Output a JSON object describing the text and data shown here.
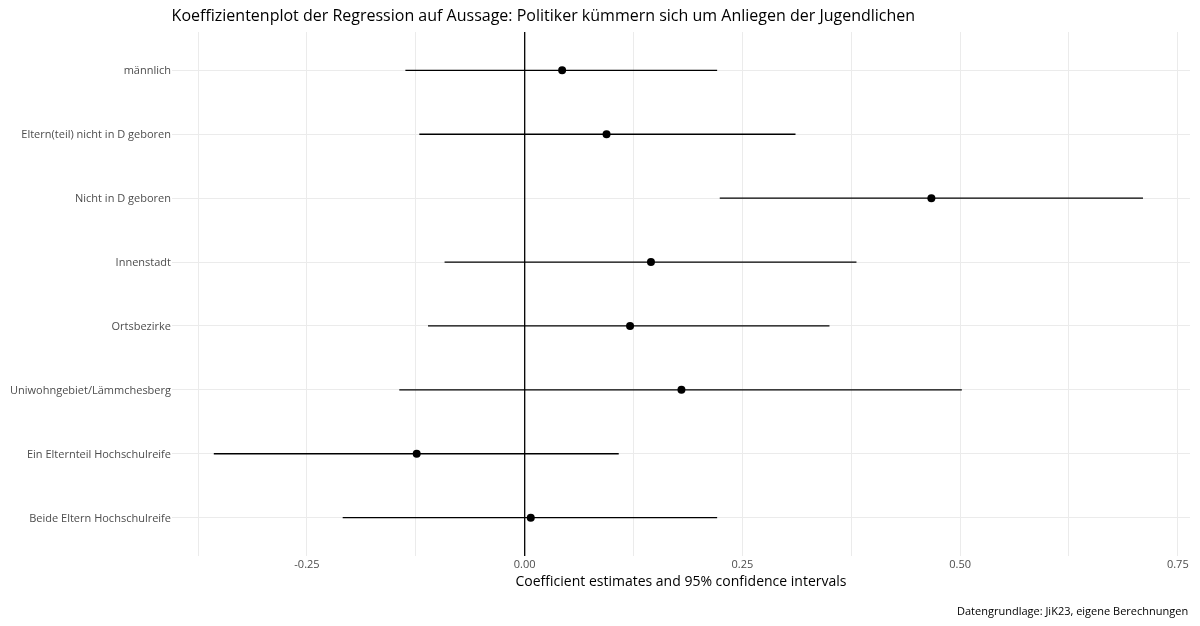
{
  "chart_data": {
    "type": "scatter",
    "orientation": "horizontal",
    "title": "Koeffizientenplot der Regression auf Aussage: Politiker kümmern sich um Anliegen der Jugendlichen",
    "xlabel": "Coefficient estimates and 95% confidence intervals",
    "categories": [
      "männlich",
      "Eltern(teil) nicht in D geboren",
      "Nicht in D geboren",
      "Innenstadt",
      "Ortsbezirke",
      "Uniwohngebiet/Lämmchesberg",
      "Ein Elternteil Hochschulreife",
      "Beide Eltern Hochschulreife"
    ],
    "values": [
      0.043,
      0.094,
      0.467,
      0.145,
      0.121,
      0.18,
      -0.124,
      0.007
    ],
    "errors": [
      [
        -0.137,
        0.221
      ],
      [
        -0.121,
        0.311
      ],
      [
        0.224,
        0.71
      ],
      [
        -0.092,
        0.381
      ],
      [
        -0.111,
        0.35
      ],
      [
        -0.144,
        0.502
      ],
      [
        -0.357,
        0.108
      ],
      [
        -0.209,
        0.221
      ]
    ],
    "color": "#000000",
    "marker": "circle",
    "xlim": [
      -0.405,
      0.764
    ],
    "xticks": [
      {
        "value": -0.375,
        "label": null
      },
      -0.25,
      {
        "value": -0.125,
        "label": null
      },
      {
        "value": 0,
        "label": "0.00"
      },
      {
        "value": 0.125,
        "label": null
      },
      0.25,
      {
        "value": 0.375,
        "label": null
      },
      {
        "value": 0.5,
        "label": "0.50"
      },
      {
        "value": 0.625,
        "label": null
      },
      0.75
    ],
    "ref_lines": [
      {
        "axis": "x",
        "value": 0,
        "color": "#000000"
      }
    ],
    "grid": true,
    "annotations": [
      "Datengrundlage: JiK23, eigene Berechnungen"
    ]
  }
}
